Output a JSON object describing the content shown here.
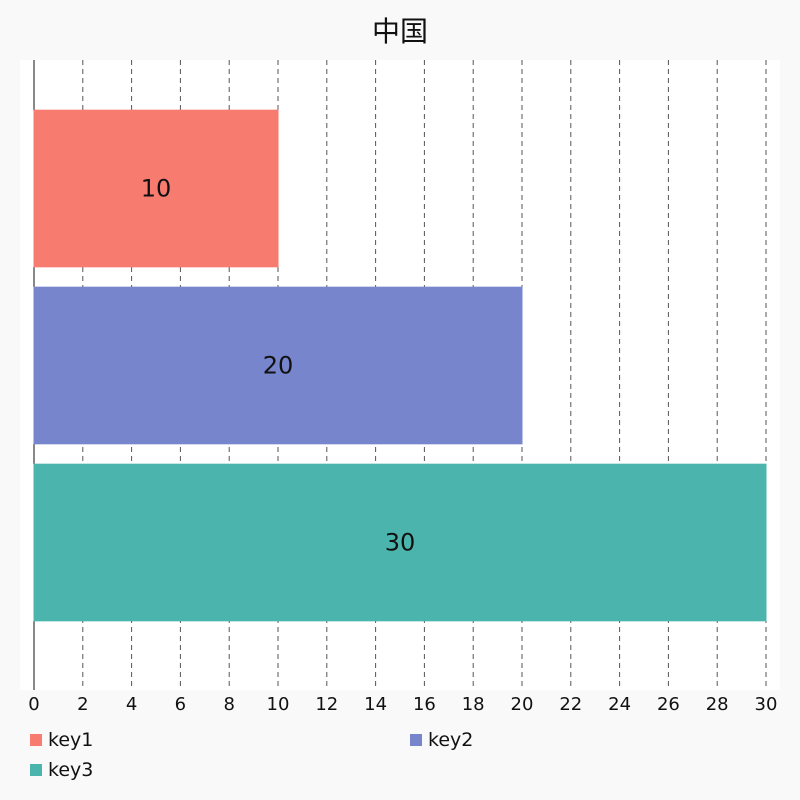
{
  "chart_data": {
    "type": "bar",
    "orientation": "horizontal",
    "title": "中国",
    "categories": [
      "key1",
      "key2",
      "key3"
    ],
    "values": [
      10,
      20,
      30
    ],
    "data_labels": [
      "10",
      "20",
      "30"
    ],
    "colors": [
      "#f87b70",
      "#7785cc",
      "#4bb5ad"
    ],
    "xlim": [
      0,
      30
    ],
    "x_ticks": [
      0,
      2,
      4,
      6,
      8,
      10,
      12,
      14,
      16,
      18,
      20,
      22,
      24,
      26,
      28,
      30
    ],
    "grid": "vertical dashed",
    "legend_position": "bottom",
    "legend": [
      "key1",
      "key2",
      "key3"
    ]
  }
}
